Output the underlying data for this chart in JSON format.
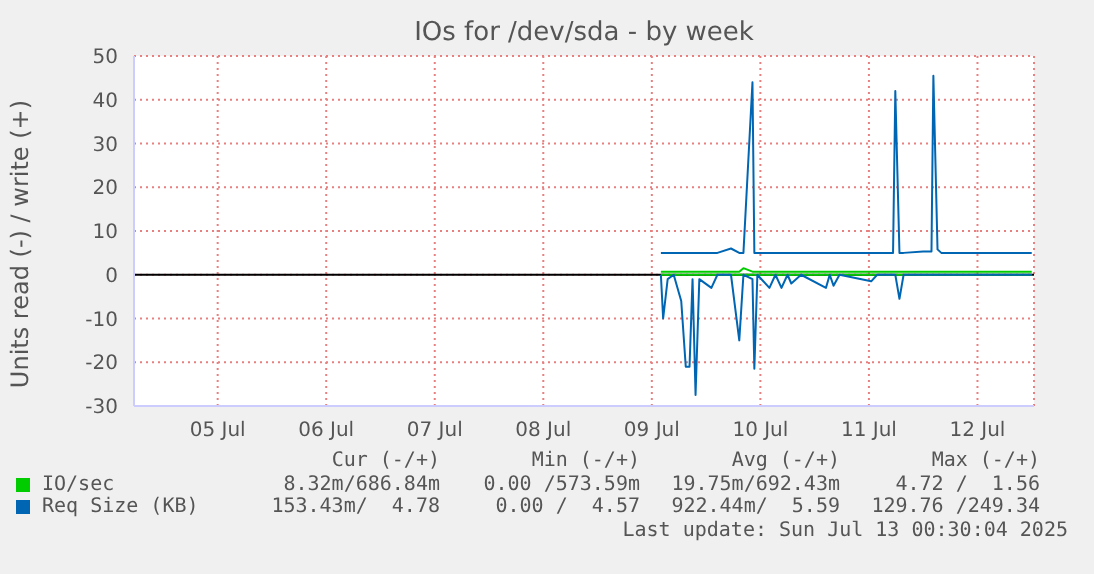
{
  "chart_data": {
    "type": "line",
    "title": "IOs for /dev/sda - by week",
    "ylabel": "Units read (-) / write (+)",
    "x": [
      "2025-07-09T14:00",
      "2025-07-09T14:30",
      "2025-07-09T15:30",
      "2025-07-09T16:50",
      "2025-07-09T18:30",
      "2025-07-09T19:30",
      "2025-07-09T20:20",
      "2025-07-09T21:00",
      "2025-07-09T21:40",
      "2025-07-09T22:30",
      "2025-07-10T01:10",
      "2025-07-10T02:30",
      "2025-07-10T05:30",
      "2025-07-10T07:20",
      "2025-07-10T08:15",
      "2025-07-10T10:15",
      "2025-07-10T10:40",
      "2025-07-10T11:20",
      "2025-07-10T14:00",
      "2025-07-10T15:20",
      "2025-07-10T16:40",
      "2025-07-10T18:00",
      "2025-07-10T18:50",
      "2025-07-10T21:00",
      "2025-07-11T02:30",
      "2025-07-11T03:20",
      "2025-07-11T04:10",
      "2025-07-11T05:30",
      "2025-07-11T12:30",
      "2025-07-11T13:50",
      "2025-07-11T17:20",
      "2025-07-11T17:50",
      "2025-07-11T18:45",
      "2025-07-11T19:40",
      "2025-07-12T00:00",
      "2025-07-12T01:50",
      "2025-07-12T02:15",
      "2025-07-12T03:10",
      "2025-07-12T04:00",
      "2025-07-12T08:30",
      "2025-07-12T17:20",
      "2025-07-13T00:00"
    ],
    "series": [
      {
        "color": "#00cc00",
        "values": [
          0,
          0,
          0,
          0,
          0,
          0,
          0,
          0,
          0,
          0,
          0,
          0,
          0,
          0,
          0,
          0,
          0,
          0,
          0,
          0,
          0,
          0,
          0,
          0,
          0,
          0,
          0,
          0,
          0,
          0,
          0,
          0,
          0,
          0,
          0,
          0,
          0,
          0,
          0,
          0,
          0,
          0
        ]
      },
      {
        "name": "IO/sec",
        "color": "#00cc00",
        "values": [
          0.7,
          0.7,
          0.7,
          0.7,
          0.7,
          0.7,
          0.7,
          0.7,
          0.7,
          0.7,
          0.7,
          0.7,
          0.7,
          0.7,
          1.5,
          0.7,
          0.7,
          0.7,
          0.7,
          0.7,
          0.7,
          0.7,
          0.7,
          0.7,
          0.7,
          0.7,
          0.7,
          0.7,
          0.7,
          0.7,
          0.7,
          0.7,
          0.7,
          0.7,
          0.7,
          0.7,
          0.7,
          0.7,
          0.7,
          0.7,
          0.7,
          0.7
        ]
      },
      {
        "color": "#0066b3",
        "values": [
          0,
          -10,
          -1,
          0,
          -6,
          -21,
          -21,
          -1,
          -27.5,
          -1,
          -3,
          0,
          0,
          -15,
          0,
          -1,
          -21.5,
          0,
          -3,
          0,
          -3,
          0,
          -2,
          0,
          -3,
          0,
          -2.5,
          0,
          -1.5,
          0,
          0,
          0,
          -5.5,
          0,
          0,
          0,
          0,
          0,
          0,
          0,
          0,
          0
        ]
      },
      {
        "name": "Req Size (KB)",
        "color": "#0066b3",
        "values": [
          5,
          5,
          5,
          5,
          5,
          5,
          5,
          5,
          5,
          5,
          5,
          5,
          6,
          5,
          5,
          44,
          5,
          5,
          5,
          5,
          5,
          5,
          5,
          5,
          5,
          5,
          5,
          5,
          5,
          5,
          5,
          42,
          5,
          5,
          5.3,
          5.3,
          45.5,
          5.8,
          5,
          5,
          5,
          5
        ]
      }
    ],
    "xlim": [
      "2025-07-04T17:30",
      "2025-07-13T00:30"
    ],
    "xticks": [
      {
        "value": "2025-07-05T12:00",
        "label": "05 Jul"
      },
      {
        "value": "2025-07-06T12:00",
        "label": "06 Jul"
      },
      {
        "value": "2025-07-07T12:00",
        "label": "07 Jul"
      },
      {
        "value": "2025-07-08T12:00",
        "label": "08 Jul"
      },
      {
        "value": "2025-07-09T12:00",
        "label": "09 Jul"
      },
      {
        "value": "2025-07-10T12:00",
        "label": "10 Jul"
      },
      {
        "value": "2025-07-11T12:00",
        "label": "11 Jul"
      },
      {
        "value": "2025-07-12T12:00",
        "label": "12 Jul"
      }
    ],
    "ylim": [
      -30,
      50
    ],
    "yticks": [
      -30,
      -20,
      -10,
      0,
      10,
      20,
      30,
      40,
      50
    ],
    "ref_lines": [
      {
        "axis": "y",
        "value": 0,
        "color": "#000000"
      }
    ],
    "grid": true,
    "legend": "bottom",
    "marker": "none",
    "line_style": "solid",
    "annotations": [
      "Cur (-/+)",
      "Min (-/+)",
      "Avg (-/+)",
      "Max (-/+)",
      "8.32m/686.84m",
      "0.00 /573.59m",
      "19.75m/692.43m",
      "4.72 /  1.56",
      "153.43m/  4.78",
      "0.00 /  4.57",
      "922.44m/  5.59",
      "129.76 /249.34",
      "Last update: Sun Jul 13 00:30:04 2025"
    ]
  }
}
